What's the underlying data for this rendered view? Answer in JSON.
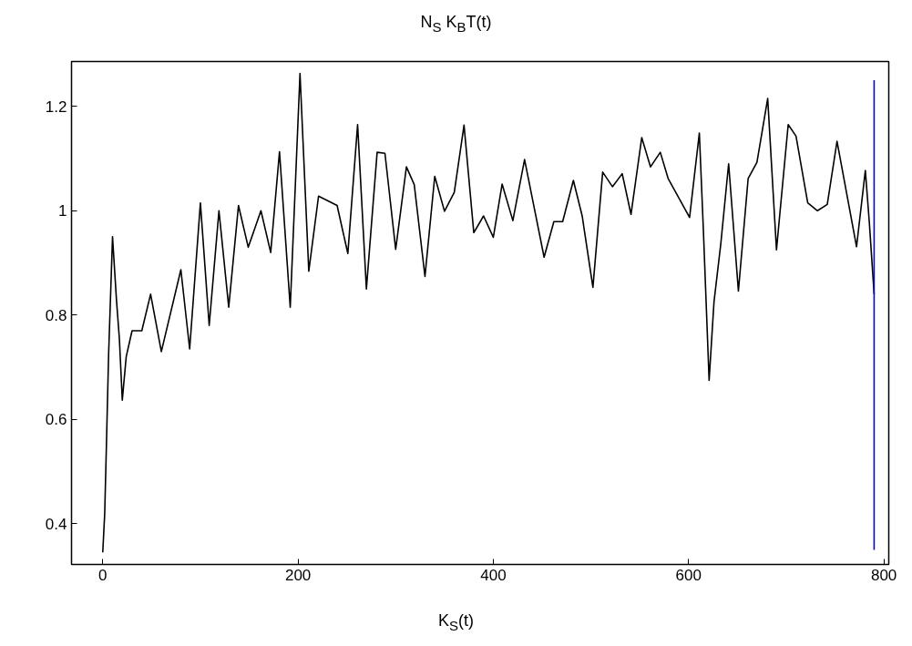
{
  "chart_data": {
    "type": "line",
    "title": "N$_{S}$ K$_{B}$T(t)",
    "xlabel": "K$_{S}$(t)",
    "xlim": [
      -32,
      805
    ],
    "ylim": [
      0.322,
      1.286
    ],
    "xticks": [
      0,
      200,
      400,
      600,
      800
    ],
    "yticks": [
      0.4,
      0.6,
      0.8,
      1,
      1.2
    ],
    "grid": false,
    "series": [
      {
        "color": "#000000",
        "x": [
          0,
          2,
          4,
          6,
          10,
          14,
          17,
          20,
          24,
          30,
          40,
          49,
          60,
          80,
          89,
          100,
          109,
          119,
          129,
          139,
          149,
          162,
          172,
          181,
          192,
          202,
          211,
          221,
          240,
          251,
          261,
          270,
          281,
          289,
          300,
          311,
          319,
          330,
          340,
          350,
          360,
          370,
          380,
          390,
          400,
          409,
          420,
          432,
          452,
          462,
          471,
          482,
          491,
          502,
          512,
          522,
          532,
          541,
          552,
          561,
          571,
          579,
          601,
          611,
          615,
          621,
          626,
          633,
          641,
          651,
          661,
          670,
          681,
          690,
          702,
          710,
          722,
          732,
          742,
          752,
          772,
          781,
          785,
          790
        ],
        "values": [
          0.345,
          0.42,
          0.57,
          0.725,
          0.95,
          0.83,
          0.755,
          0.637,
          0.72,
          0.77,
          0.77,
          0.84,
          0.73,
          0.887,
          0.735,
          1.015,
          0.78,
          1.0,
          0.815,
          1.01,
          0.93,
          1.0,
          0.92,
          1.113,
          0.815,
          1.263,
          0.884,
          1.028,
          1.01,
          0.918,
          1.165,
          0.85,
          1.112,
          1.11,
          0.926,
          1.084,
          1.05,
          0.874,
          1.066,
          0.999,
          1.035,
          1.164,
          0.958,
          0.99,
          0.949,
          1.051,
          0.981,
          1.098,
          0.911,
          0.979,
          0.979,
          1.058,
          0.99,
          0.853,
          1.074,
          1.046,
          1.071,
          0.993,
          1.14,
          1.084,
          1.112,
          1.062,
          0.987,
          1.149,
          0.969,
          0.675,
          0.825,
          0.937,
          1.09,
          0.846,
          1.062,
          1.093,
          1.215,
          0.925,
          1.165,
          1.143,
          1.015,
          1.0,
          1.012,
          1.133,
          0.931,
          1.077,
          0.98,
          0.84
        ]
      },
      {
        "type": "line",
        "color": "#0000ff",
        "x": [
          790,
          790
        ],
        "values": [
          0.35,
          1.25
        ]
      }
    ]
  }
}
